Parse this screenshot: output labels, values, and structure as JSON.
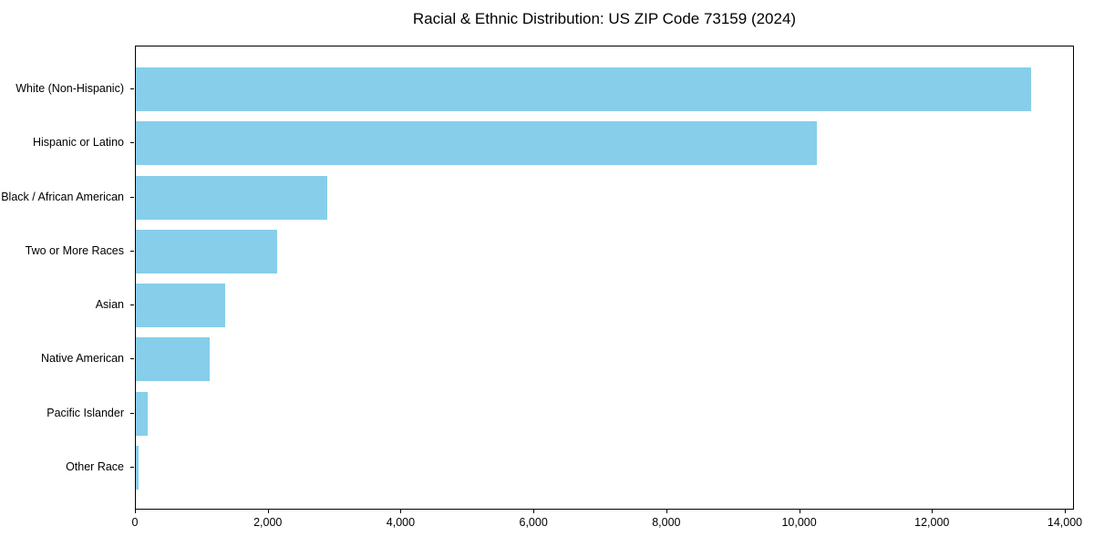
{
  "figure": {
    "background_color": "#ffffff",
    "text_color": "#000000",
    "spine_color": "#000000"
  },
  "chart_data": {
    "type": "bar",
    "orientation": "horizontal",
    "title": "Racial & Ethnic Distribution: US ZIP Code 73159 (2024)",
    "xlabel": "",
    "ylabel": "",
    "categories": [
      "White (Non-Hispanic)",
      "Hispanic or Latino",
      "Black / African American",
      "Two or More Races",
      "Asian",
      "Native American",
      "Pacific Islander",
      "Other Race"
    ],
    "values": [
      13475,
      10250,
      2880,
      2125,
      1350,
      1110,
      180,
      40
    ],
    "xlim": [
      0,
      14000
    ],
    "xticks": [
      0,
      2000,
      4000,
      6000,
      8000,
      10000,
      12000,
      14000
    ],
    "xtick_labels": [
      "0",
      "2,000",
      "4,000",
      "6,000",
      "8,000",
      "10,000",
      "12,000",
      "14,000"
    ],
    "bar_color": "#87CEEB",
    "grid": false,
    "legend": null
  }
}
